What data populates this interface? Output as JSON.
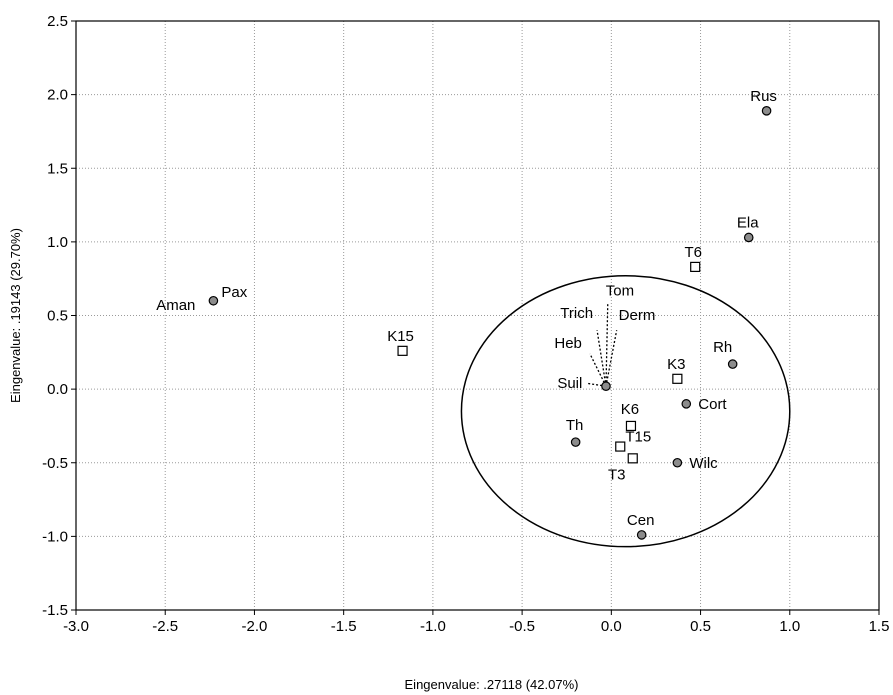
{
  "chart_data": {
    "type": "scatter",
    "xlabel": "Eingenvalue: .27118 (42.07%)",
    "ylabel": "Eingenvalue: .19143 (29.70%)",
    "xlim": [
      -3.0,
      1.5
    ],
    "ylim": [
      -1.5,
      2.5
    ],
    "x_ticks": [
      "-3.0",
      "-2.5",
      "-2.0",
      "-1.5",
      "-1.0",
      "-0.5",
      "0.0",
      "0.5",
      "1.0",
      "1.5"
    ],
    "y_ticks": [
      "2.5",
      "2.0",
      "1.5",
      "1.0",
      "0.5",
      "0.0",
      "-0.5",
      "-1.0",
      "-1.5"
    ],
    "grid": true,
    "circle": {
      "cx": 0.08,
      "cy": -0.15,
      "r": 0.92
    },
    "vector_origin": {
      "x": -0.03,
      "y": 0.02
    },
    "vectors": [
      {
        "label": "Tom",
        "x": -0.02,
        "y": 0.58
      },
      {
        "label": "Derm",
        "x": 0.03,
        "y": 0.4
      },
      {
        "label": "Trich",
        "x": -0.08,
        "y": 0.4
      },
      {
        "label": "Heb",
        "x": -0.12,
        "y": 0.24
      },
      {
        "label": "Suil",
        "x": -0.14,
        "y": 0.04
      }
    ],
    "series": [
      {
        "marker": "circle",
        "points": [
          {
            "label": "Rus",
            "x": 0.87,
            "y": 1.89
          },
          {
            "label": "Ela",
            "x": 0.77,
            "y": 1.03
          },
          {
            "label": "Pax",
            "x": -2.23,
            "y": 0.6
          },
          {
            "label": "Aman",
            "x": -2.23,
            "y": 0.6
          },
          {
            "label": "Rh",
            "x": 0.68,
            "y": 0.17
          },
          {
            "label": "Cort",
            "x": 0.42,
            "y": -0.1
          },
          {
            "label": "Th",
            "x": -0.2,
            "y": -0.36
          },
          {
            "label": "Wilc",
            "x": 0.37,
            "y": -0.5
          },
          {
            "label": "Cen",
            "x": 0.17,
            "y": -0.99
          },
          {
            "label": "",
            "x": -0.03,
            "y": 0.02
          }
        ]
      },
      {
        "marker": "square",
        "points": [
          {
            "label": "T6",
            "x": 0.47,
            "y": 0.83
          },
          {
            "label": "K15",
            "x": -1.17,
            "y": 0.26
          },
          {
            "label": "K3",
            "x": 0.37,
            "y": 0.07
          },
          {
            "label": "K6",
            "x": 0.11,
            "y": -0.25
          },
          {
            "label": "T15",
            "x": 0.05,
            "y": -0.39
          },
          {
            "label": "T3",
            "x": 0.12,
            "y": -0.47
          }
        ]
      }
    ]
  }
}
